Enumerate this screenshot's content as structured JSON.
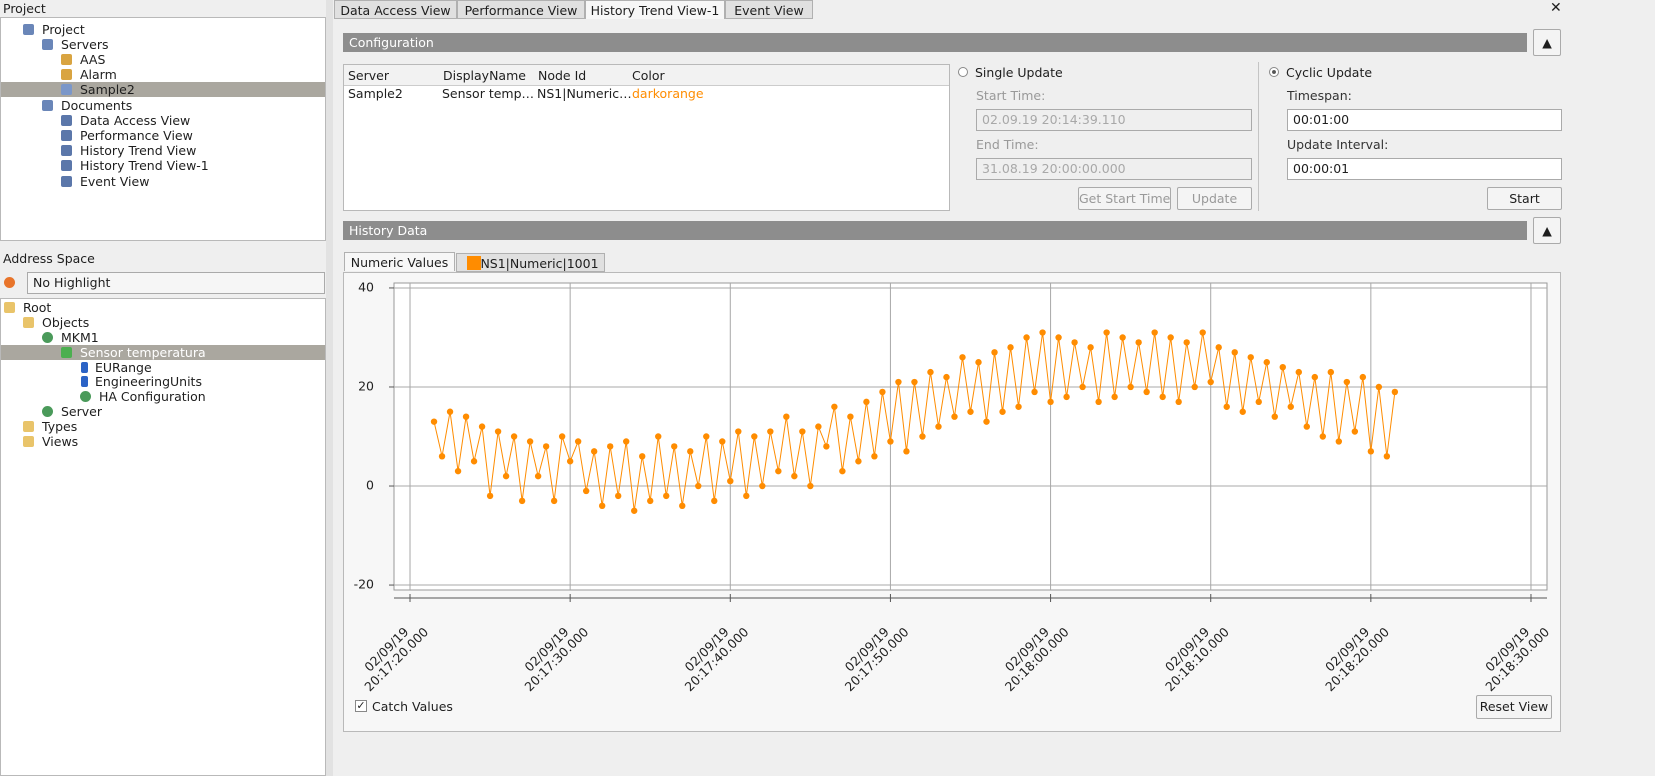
{
  "project_panel": {
    "title": "Project",
    "items": [
      "Project",
      "Servers",
      "AAS",
      "Alarm",
      "Sample2",
      "Documents",
      "Data Access View",
      "Performance View",
      "History Trend View",
      "History Trend View-1",
      "Event View"
    ]
  },
  "address_panel": {
    "title": "Address Space",
    "highlight": "No Highlight",
    "items": [
      "Root",
      "Objects",
      "MKM1",
      "Sensor temperatura",
      "EURange",
      "EngineeringUnits",
      "HA Configuration",
      "Server",
      "Types",
      "Views"
    ]
  },
  "tabs": [
    "Data Access View",
    "Performance View",
    "History Trend View-1",
    "Event View"
  ],
  "configuration": {
    "title": "Configuration",
    "table": {
      "headers": [
        "Server",
        "DisplayName",
        "Node Id",
        "Color"
      ],
      "rows": [
        [
          "Sample2",
          "Sensor temp…",
          "NS1|Numeric…",
          "darkorange"
        ]
      ]
    },
    "single_update": {
      "label": "Single Update",
      "start_label": "Start Time:",
      "start": "02.09.19 20:14:39.110",
      "end_label": "End Time:",
      "end": "31.08.19 20:00:00.000",
      "get_start": "Get Start Time",
      "update": "Update"
    },
    "cyclic_update": {
      "label": "Cyclic Update",
      "timespan_label": "Timespan:",
      "timespan": "00:01:00",
      "interval_label": "Update Interval:",
      "interval": "00:00:01",
      "start": "Start"
    }
  },
  "history": {
    "title": "History Data",
    "tab": "Numeric Values",
    "catch_values": "Catch Values",
    "reset_view": "Reset View"
  },
  "chart_data": {
    "type": "line",
    "x": [
      "02/09/19 20:17:21.500",
      "02/09/19 20:17:22.000",
      "02/09/19 20:17:22.500",
      "02/09/19 20:17:23.000",
      "02/09/19 20:17:23.500",
      "02/09/19 20:17:24.000",
      "02/09/19 20:17:24.500",
      "02/09/19 20:17:25.000",
      "02/09/19 20:17:25.500",
      "02/09/19 20:17:26.000",
      "02/09/19 20:17:26.500",
      "02/09/19 20:17:27.000",
      "02/09/19 20:17:27.500",
      "02/09/19 20:17:28.000",
      "02/09/19 20:17:28.500",
      "02/09/19 20:17:29.000",
      "02/09/19 20:17:29.500",
      "02/09/19 20:17:30.000",
      "02/09/19 20:17:30.500",
      "02/09/19 20:17:31.000",
      "02/09/19 20:17:31.500",
      "02/09/19 20:17:32.000",
      "02/09/19 20:17:32.500",
      "02/09/19 20:17:33.000",
      "02/09/19 20:17:33.500",
      "02/09/19 20:17:34.000",
      "02/09/19 20:17:34.500",
      "02/09/19 20:17:35.000",
      "02/09/19 20:17:35.500",
      "02/09/19 20:17:36.000",
      "02/09/19 20:17:36.500",
      "02/09/19 20:17:37.000",
      "02/09/19 20:17:37.500",
      "02/09/19 20:17:38.000",
      "02/09/19 20:17:38.500",
      "02/09/19 20:17:39.000",
      "02/09/19 20:17:39.500",
      "02/09/19 20:17:40.000",
      "02/09/19 20:17:40.500",
      "02/09/19 20:17:41.000",
      "02/09/19 20:17:41.500",
      "02/09/19 20:17:42.000",
      "02/09/19 20:17:42.500",
      "02/09/19 20:17:43.000",
      "02/09/19 20:17:43.500",
      "02/09/19 20:17:44.000",
      "02/09/19 20:17:44.500",
      "02/09/19 20:17:45.000",
      "02/09/19 20:17:45.500",
      "02/09/19 20:17:46.000",
      "02/09/19 20:17:46.500",
      "02/09/19 20:17:47.000",
      "02/09/19 20:17:47.500",
      "02/09/19 20:17:48.000",
      "02/09/19 20:17:48.500",
      "02/09/19 20:17:49.000",
      "02/09/19 20:17:49.500",
      "02/09/19 20:17:50.000",
      "02/09/19 20:17:50.500",
      "02/09/19 20:17:51.000",
      "02/09/19 20:17:51.500",
      "02/09/19 20:17:52.000",
      "02/09/19 20:17:52.500",
      "02/09/19 20:17:53.000",
      "02/09/19 20:17:53.500",
      "02/09/19 20:17:54.000",
      "02/09/19 20:17:54.500",
      "02/09/19 20:17:55.000",
      "02/09/19 20:17:55.500",
      "02/09/19 20:17:56.000",
      "02/09/19 20:17:56.500",
      "02/09/19 20:17:57.000",
      "02/09/19 20:17:57.500",
      "02/09/19 20:17:58.000",
      "02/09/19 20:17:58.500",
      "02/09/19 20:17:59.000",
      "02/09/19 20:17:59.500",
      "02/09/19 20:18:00.000",
      "02/09/19 20:18:00.500",
      "02/09/19 20:18:01.000",
      "02/09/19 20:18:01.500",
      "02/09/19 20:18:02.000",
      "02/09/19 20:18:02.500",
      "02/09/19 20:18:03.000",
      "02/09/19 20:18:03.500",
      "02/09/19 20:18:04.000",
      "02/09/19 20:18:04.500",
      "02/09/19 20:18:05.000",
      "02/09/19 20:18:05.500",
      "02/09/19 20:18:06.000",
      "02/09/19 20:18:06.500",
      "02/09/19 20:18:07.000",
      "02/09/19 20:18:07.500",
      "02/09/19 20:18:08.000",
      "02/09/19 20:18:08.500",
      "02/09/19 20:18:09.000",
      "02/09/19 20:18:09.500",
      "02/09/19 20:18:10.000",
      "02/09/19 20:18:10.500",
      "02/09/19 20:18:11.000",
      "02/09/19 20:18:11.500",
      "02/09/19 20:18:12.000",
      "02/09/19 20:18:12.500",
      "02/09/19 20:18:13.000",
      "02/09/19 20:18:13.500",
      "02/09/19 20:18:14.000",
      "02/09/19 20:18:14.500",
      "02/09/19 20:18:15.000",
      "02/09/19 20:18:15.500",
      "02/09/19 20:18:16.000",
      "02/09/19 20:18:16.500",
      "02/09/19 20:18:17.000",
      "02/09/19 20:18:17.500",
      "02/09/19 20:18:18.000",
      "02/09/19 20:18:18.500",
      "02/09/19 20:18:19.000",
      "02/09/19 20:18:19.500",
      "02/09/19 20:18:20.000",
      "02/09/19 20:18:20.500",
      "02/09/19 20:18:21.000",
      "02/09/19 20:18:21.500"
    ],
    "series": [
      {
        "name": "NS1|Numeric|1001",
        "color": "#ff8c00",
        "values": [
          13,
          6,
          15,
          3,
          14,
          5,
          12,
          -2,
          11,
          2,
          10,
          -3,
          9,
          2,
          8,
          -3,
          10,
          5,
          9,
          -1,
          7,
          -4,
          8,
          -2,
          9,
          -5,
          6,
          -3,
          10,
          -2,
          8,
          -4,
          7,
          0,
          10,
          -3,
          9,
          1,
          11,
          -2,
          10,
          0,
          11,
          3,
          14,
          2,
          11,
          0,
          12,
          8,
          16,
          3,
          14,
          5,
          17,
          6,
          19,
          9,
          21,
          7,
          21,
          10,
          23,
          12,
          22,
          14,
          26,
          15,
          25,
          13,
          27,
          15,
          28,
          16,
          30,
          19,
          31,
          17,
          30,
          18,
          29,
          20,
          28,
          17,
          31,
          18,
          30,
          20,
          29,
          19,
          31,
          18,
          30,
          17,
          29,
          20,
          31,
          21,
          28,
          16,
          27,
          15,
          26,
          17,
          25,
          14,
          24,
          16,
          23,
          12,
          22,
          10,
          23,
          9,
          21,
          11,
          22,
          7,
          20,
          6,
          19
        ]
      }
    ],
    "xlim": [
      "02/09/19 20:17:19.000",
      "02/09/19 20:18:31.000"
    ],
    "xticks": [
      {
        "value": "02/09/19 20:17:20.000",
        "label": [
          "02/09/19",
          "20:17:20.000"
        ]
      },
      {
        "value": "02/09/19 20:17:30.000",
        "label": [
          "02/09/19",
          "20:17:30.000"
        ]
      },
      {
        "value": "02/09/19 20:17:40.000",
        "label": [
          "02/09/19",
          "20:17:40.000"
        ]
      },
      {
        "value": "02/09/19 20:17:50.000",
        "label": [
          "02/09/19",
          "20:17:50.000"
        ]
      },
      {
        "value": "02/09/19 20:18:00.000",
        "label": [
          "02/09/19",
          "20:18:00.000"
        ]
      },
      {
        "value": "02/09/19 20:18:10.000",
        "label": [
          "02/09/19",
          "20:18:10.000"
        ]
      },
      {
        "value": "02/09/19 20:18:20.000",
        "label": [
          "02/09/19",
          "20:18:20.000"
        ]
      },
      {
        "value": "02/09/19 20:18:30.000",
        "label": [
          "02/09/19",
          "20:18:30.000"
        ]
      }
    ],
    "ylim": [
      -21,
      41
    ],
    "yticks": [
      -20,
      0,
      20,
      40
    ],
    "grid": true
  }
}
